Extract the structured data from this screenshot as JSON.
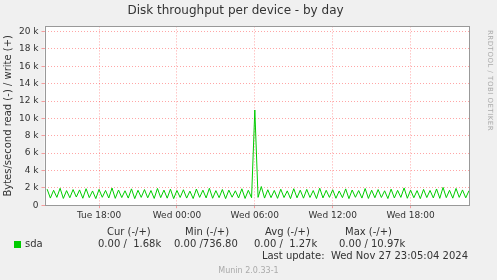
{
  "chart_data": {
    "type": "line",
    "title": "Disk throughput per device - by day",
    "y_label": "Bytes/second read (-) / write (+)",
    "side_text": "RRDTOOL / TOBI OETIKER",
    "summary_columns": [
      "Cur (-/+)",
      "Min (-/+)",
      "Avg (-/+)",
      "Max (-/+)"
    ],
    "last_update": "Last update:  Wed Nov 27 23:05:04 2024",
    "footer": "Munin 2.0.33-1",
    "grid": true,
    "xlim": [
      13.8,
      46.5
    ],
    "xticks": [
      {
        "value": 18,
        "label": "Tue 18:00"
      },
      {
        "value": 24,
        "label": "Wed 00:00"
      },
      {
        "value": 30,
        "label": "Wed 06:00"
      },
      {
        "value": 36,
        "label": "Wed 12:00"
      },
      {
        "value": 42,
        "label": "Wed 18:00"
      }
    ],
    "ylim": [
      0,
      20600
    ],
    "yticks": [
      0,
      {
        "value": 2000,
        "label": "2 k"
      },
      {
        "value": 4000,
        "label": "4 k"
      },
      {
        "value": 6000,
        "label": "6 k"
      },
      {
        "value": 8000,
        "label": "8 k"
      },
      {
        "value": 10000,
        "label": "10 k"
      },
      {
        "value": 12000,
        "label": "12 k"
      },
      {
        "value": 14000,
        "label": "14 k"
      },
      {
        "value": 16000,
        "label": "16 k"
      },
      {
        "value": 18000,
        "label": "18 k"
      },
      {
        "value": 20000,
        "label": "20 k"
      }
    ],
    "x": [
      14,
      14.25,
      14.5,
      14.75,
      15,
      15.25,
      15.5,
      15.75,
      16,
      16.25,
      16.5,
      16.75,
      17,
      17.25,
      17.5,
      17.75,
      18,
      18.25,
      18.5,
      18.75,
      19,
      19.25,
      19.5,
      19.75,
      20,
      20.25,
      20.5,
      20.75,
      21,
      21.25,
      21.5,
      21.75,
      22,
      22.25,
      22.5,
      22.75,
      23,
      23.25,
      23.5,
      23.75,
      24,
      24.25,
      24.5,
      24.75,
      25,
      25.25,
      25.5,
      25.75,
      26,
      26.25,
      26.5,
      26.75,
      27,
      27.25,
      27.5,
      27.75,
      28,
      28.25,
      28.5,
      28.75,
      29,
      29.25,
      29.5,
      29.75,
      30,
      30.25,
      30.5,
      30.75,
      31,
      31.25,
      31.5,
      31.75,
      32,
      32.25,
      32.5,
      32.75,
      33,
      33.25,
      33.5,
      33.75,
      34,
      34.25,
      34.5,
      34.75,
      35,
      35.25,
      35.5,
      35.75,
      36,
      36.25,
      36.5,
      36.75,
      37,
      37.25,
      37.5,
      37.75,
      38,
      38.25,
      38.5,
      38.75,
      39,
      39.25,
      39.5,
      39.75,
      40,
      40.25,
      40.5,
      40.75,
      41,
      41.25,
      41.5,
      41.75,
      42,
      42.25,
      42.5,
      42.75,
      43,
      43.25,
      43.5,
      43.75,
      44,
      44.25,
      44.5,
      44.75,
      45,
      45.25,
      45.5,
      45.75,
      46,
      46.25,
      46.5
    ],
    "series": [
      {
        "name": "sda",
        "color": "#00cc00",
        "summary": [
          "0.00 /  1.68k",
          "0.00 /736.80",
          "0.00 /  1.27k",
          "0.00 / 10.97k"
        ],
        "values": [
          1850,
          820,
          1720,
          900,
          1950,
          780,
          1680,
          860,
          1800,
          940,
          1760,
          800,
          1900,
          870,
          1640,
          760,
          1820,
          910,
          1700,
          830,
          1980,
          790,
          1750,
          880,
          1660,
          820,
          1880,
          760,
          1720,
          900,
          1800,
          850,
          1690,
          780,
          1930,
          870,
          1740,
          810,
          1850,
          760,
          1700,
          890,
          1780,
          820,
          1620,
          770,
          1860,
          900,
          1730,
          840,
          1950,
          800,
          1680,
          870,
          1810,
          760,
          1740,
          920,
          1660,
          830,
          1890,
          780,
          1720,
          860,
          10970,
          900,
          2150,
          820,
          1780,
          870,
          1700,
          790,
          1840,
          880,
          1650,
          760,
          1900,
          850,
          1730,
          810,
          1820,
          890,
          1690,
          770,
          1960,
          840,
          1710,
          900,
          1780,
          800,
          1640,
          870,
          1880,
          760,
          1750,
          910,
          1690,
          820,
          1920,
          780,
          1730,
          860,
          1800,
          890,
          1660,
          770,
          1850,
          830,
          1710,
          900,
          1990,
          800,
          1740,
          860,
          1680,
          760,
          1820,
          880,
          1700,
          840,
          1870,
          790,
          2050,
          870,
          1720,
          810,
          1930,
          900,
          1760,
          850,
          1680
        ]
      }
    ]
  }
}
